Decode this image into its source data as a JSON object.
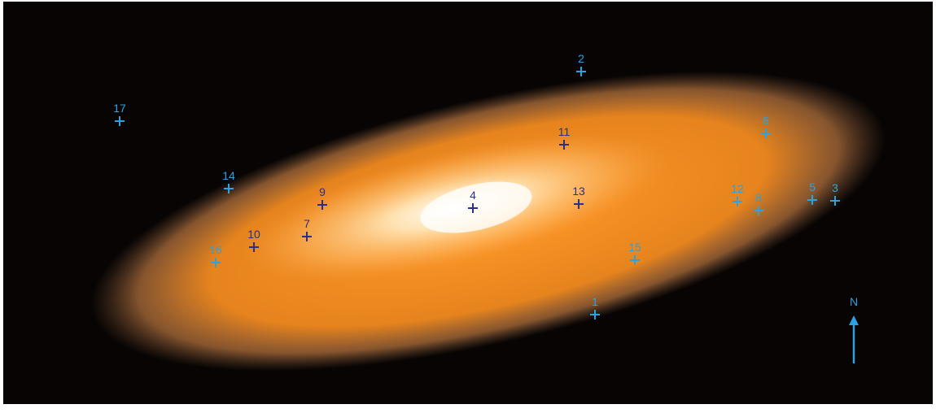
{
  "image": {
    "markers": [
      {
        "label": "1",
        "color": "#2aa3e0"
      },
      {
        "label": "2",
        "color": "#2aa3e0"
      },
      {
        "label": "3",
        "color": "#2aa3e0"
      },
      {
        "label": "4",
        "color": "#2b2f8a"
      },
      {
        "label": "5",
        "color": "#2aa3e0"
      },
      {
        "label": "6",
        "color": "#2aa3e0"
      },
      {
        "label": "7",
        "color": "#2b2f8a"
      },
      {
        "label": "8",
        "color": "#2aa3e0"
      },
      {
        "label": "9",
        "color": "#2b2f8a"
      },
      {
        "label": "10",
        "color": "#2b2f8a"
      },
      {
        "label": "11",
        "color": "#2b2f8a"
      },
      {
        "label": "12",
        "color": "#2aa3e0"
      },
      {
        "label": "13",
        "color": "#2b2f8a"
      },
      {
        "label": "14",
        "color": "#2aa3e0"
      },
      {
        "label": "15",
        "color": "#2aa3e0"
      },
      {
        "label": "16",
        "color": "#2aa3e0"
      },
      {
        "label": "17",
        "color": "#2aa3e0"
      }
    ],
    "compass": {
      "label": "N",
      "color": "#2aa3e0"
    }
  }
}
